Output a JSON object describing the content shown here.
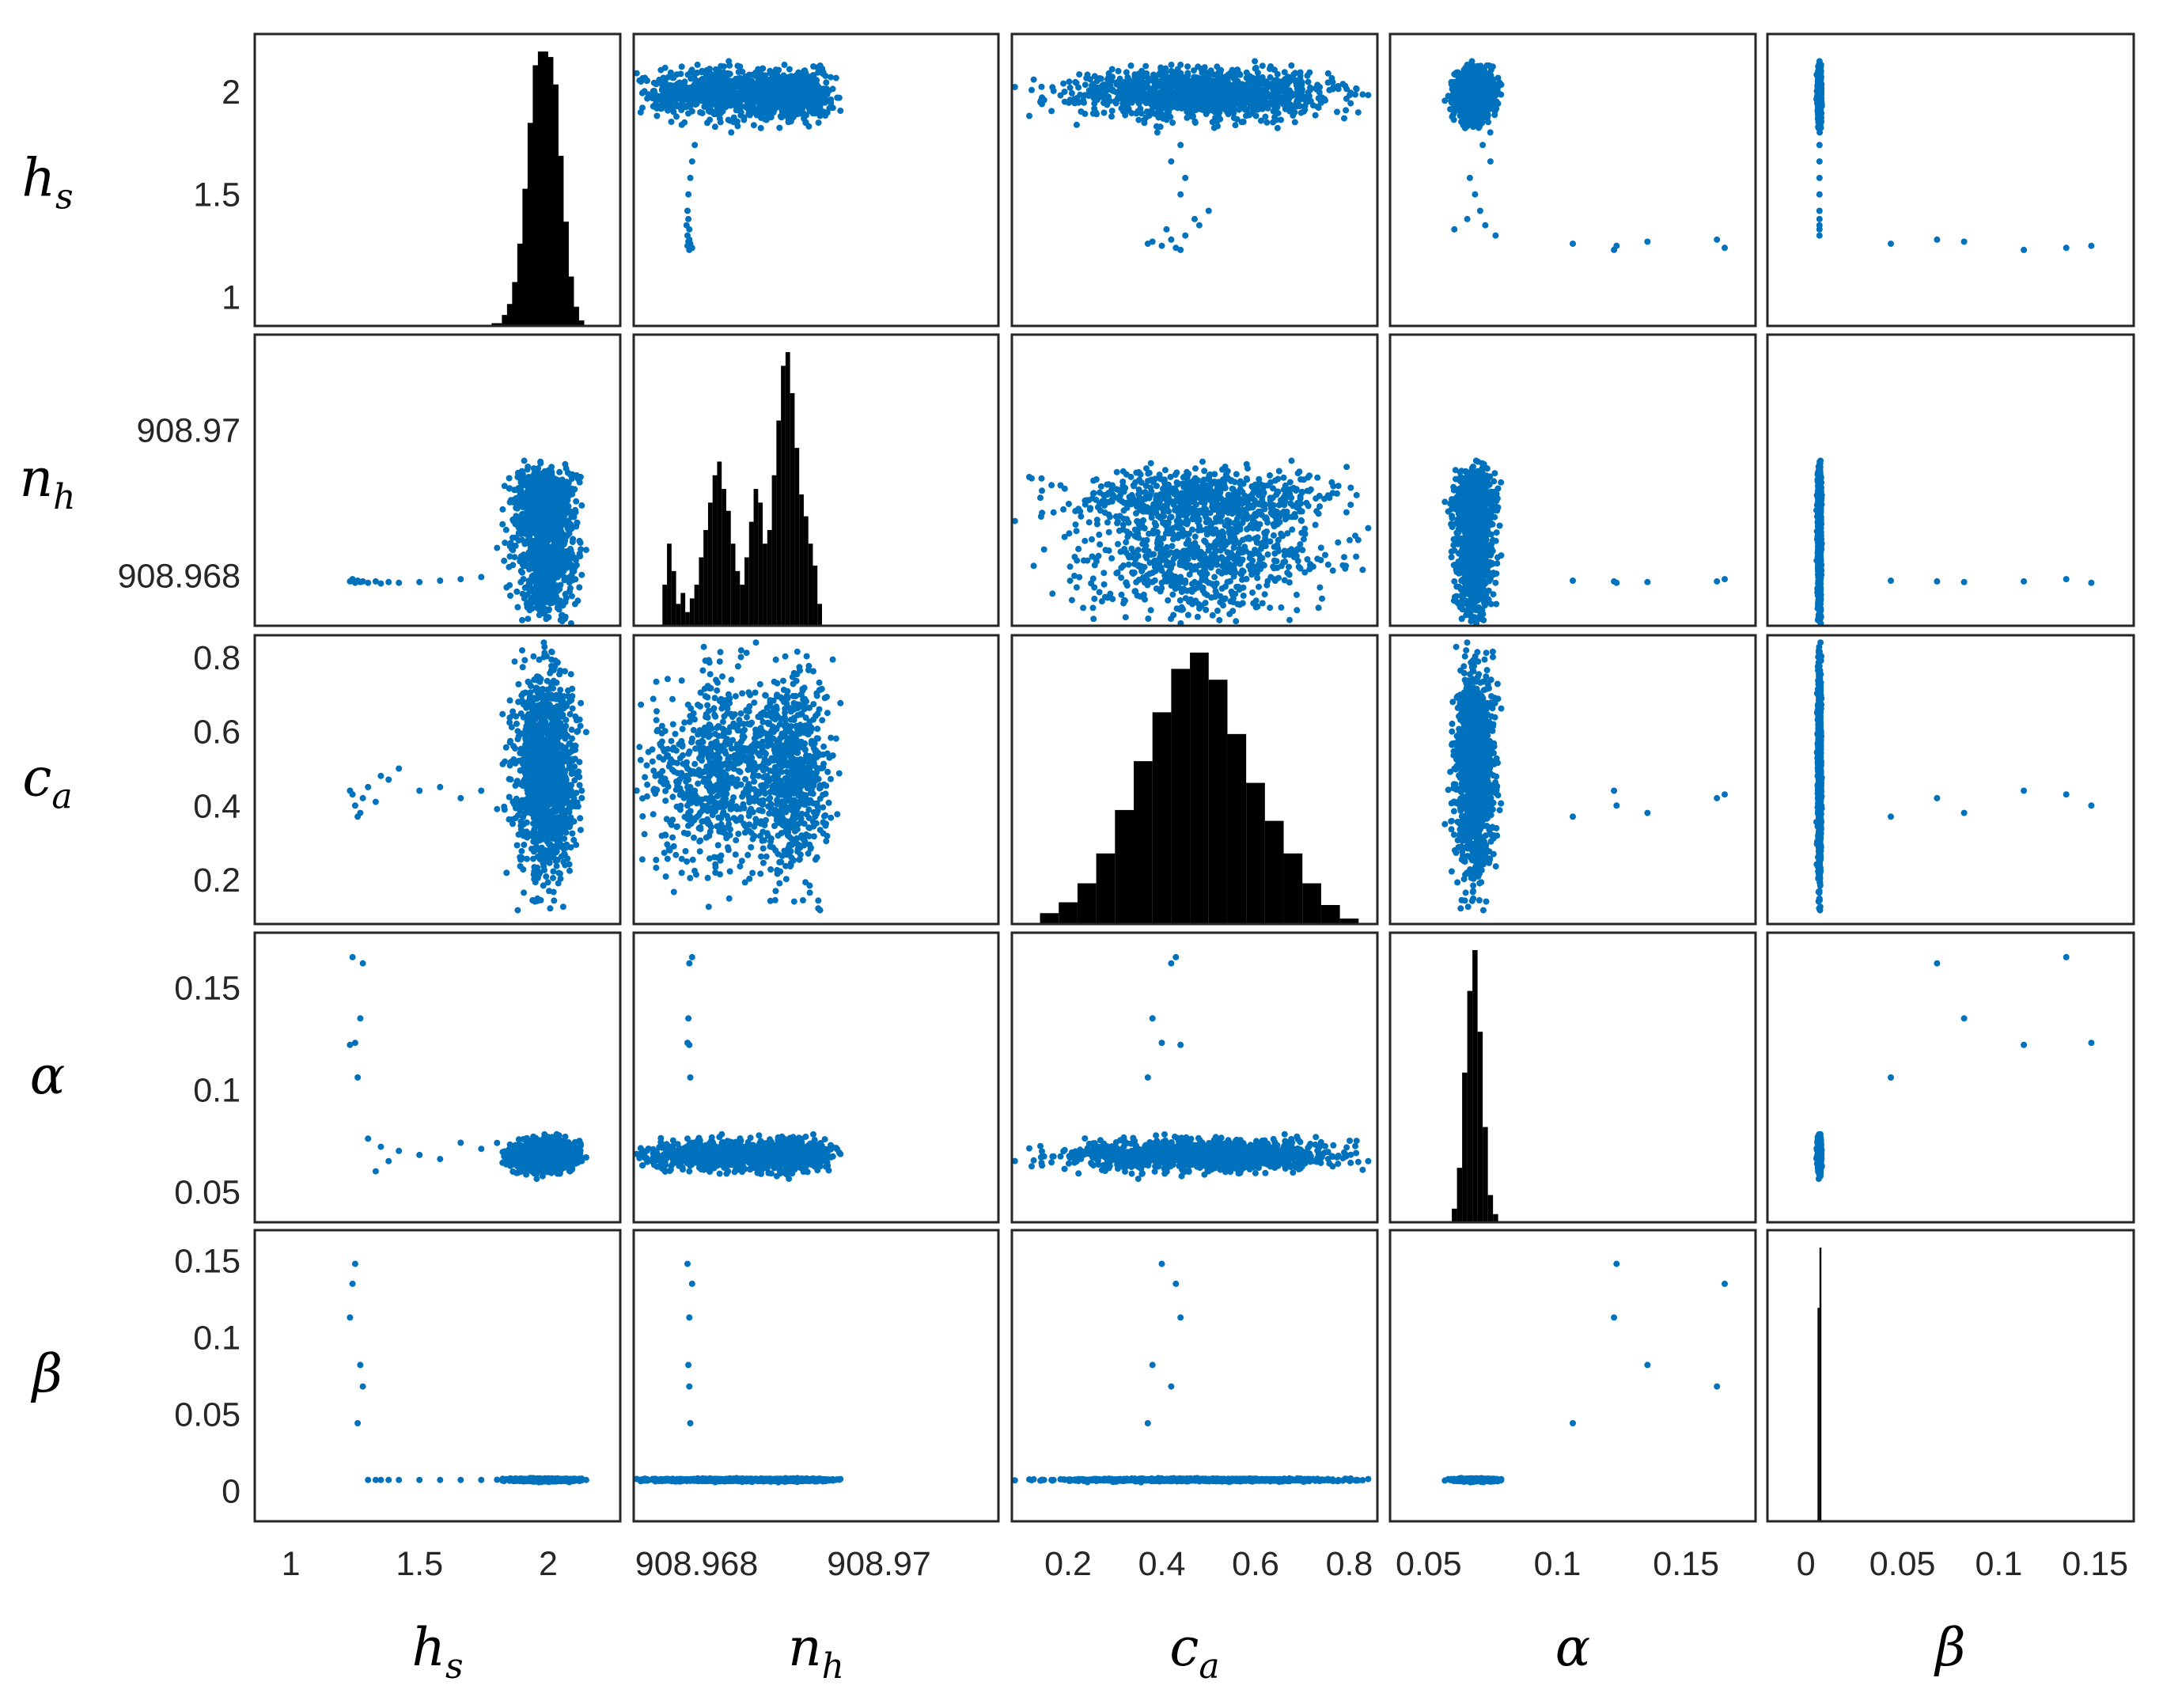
{
  "chart_data": {
    "type": "scatter-matrix",
    "variables": [
      {
        "key": "hs",
        "symbol": "h",
        "sub": "s",
        "ticks": [
          1,
          1.5,
          2
        ],
        "tick_labels": [
          "1",
          "1.5",
          "2"
        ],
        "range": [
          0.86,
          2.28
        ]
      },
      {
        "key": "nh",
        "symbol": "n",
        "sub": "h",
        "ticks": [
          908.968,
          908.97
        ],
        "tick_labels": [
          "908.968",
          "908.97"
        ],
        "range": [
          908.96731,
          908.97131
        ]
      },
      {
        "key": "ca",
        "symbol": "c",
        "sub": "a",
        "ticks": [
          0.2,
          0.4,
          0.6,
          0.8
        ],
        "tick_labels": [
          "0.2",
          "0.4",
          "0.6",
          "0.8"
        ],
        "range": [
          0.08,
          0.86
        ]
      },
      {
        "key": "alpha",
        "symbol": "α",
        "sub": "",
        "ticks": [
          0.05,
          0.1,
          0.15
        ],
        "tick_labels": [
          "0.05",
          "0.1",
          "0.15"
        ],
        "range": [
          0.035,
          0.177
        ]
      },
      {
        "key": "beta",
        "symbol": "β",
        "sub": "",
        "ticks": [
          0,
          0.05,
          0.1,
          0.15
        ],
        "tick_labels": [
          "0",
          "0.05",
          "0.1",
          "0.15"
        ],
        "range": [
          -0.02,
          0.17
        ]
      }
    ],
    "diagonal": "histogram",
    "off_diagonal": "scatter",
    "histograms": {
      "hs": {
        "bins": [
          [
            1.8,
            0.01
          ],
          [
            1.84,
            0.04
          ],
          [
            1.86,
            0.08
          ],
          [
            1.88,
            0.16
          ],
          [
            1.9,
            0.3
          ],
          [
            1.92,
            0.5
          ],
          [
            1.94,
            0.74
          ],
          [
            1.96,
            0.95
          ],
          [
            1.98,
            1.0
          ],
          [
            2.0,
            0.98
          ],
          [
            2.02,
            0.88
          ],
          [
            2.04,
            0.62
          ],
          [
            2.06,
            0.38
          ],
          [
            2.08,
            0.18
          ],
          [
            2.1,
            0.07
          ],
          [
            2.12,
            0.02
          ]
        ]
      },
      "nh": {
        "bins": [
          [
            908.96765,
            0.15
          ],
          [
            908.9677,
            0.3
          ],
          [
            908.96775,
            0.2
          ],
          [
            908.9678,
            0.08
          ],
          [
            908.96785,
            0.12
          ],
          [
            908.9679,
            0.05
          ],
          [
            908.96795,
            0.1
          ],
          [
            908.968,
            0.15
          ],
          [
            908.96805,
            0.25
          ],
          [
            908.9681,
            0.35
          ],
          [
            908.96815,
            0.45
          ],
          [
            908.9682,
            0.55
          ],
          [
            908.96825,
            0.6
          ],
          [
            908.9683,
            0.5
          ],
          [
            908.96835,
            0.42
          ],
          [
            908.9684,
            0.3
          ],
          [
            908.96845,
            0.2
          ],
          [
            908.9685,
            0.15
          ],
          [
            908.96855,
            0.25
          ],
          [
            908.9686,
            0.38
          ],
          [
            908.96865,
            0.5
          ],
          [
            908.9687,
            0.45
          ],
          [
            908.96875,
            0.3
          ],
          [
            908.9688,
            0.35
          ],
          [
            908.96885,
            0.55
          ],
          [
            908.9689,
            0.75
          ],
          [
            908.96895,
            0.95
          ],
          [
            908.969,
            1.0
          ],
          [
            908.96905,
            0.85
          ],
          [
            908.9691,
            0.65
          ],
          [
            908.96915,
            0.48
          ],
          [
            908.9692,
            0.4
          ],
          [
            908.96925,
            0.3
          ],
          [
            908.9693,
            0.22
          ],
          [
            908.96935,
            0.08
          ]
        ]
      },
      "ca": {
        "bins": [
          [
            0.16,
            0.04
          ],
          [
            0.2,
            0.08
          ],
          [
            0.24,
            0.15
          ],
          [
            0.28,
            0.26
          ],
          [
            0.32,
            0.42
          ],
          [
            0.36,
            0.6
          ],
          [
            0.4,
            0.78
          ],
          [
            0.44,
            0.94
          ],
          [
            0.48,
            1.0
          ],
          [
            0.52,
            0.9
          ],
          [
            0.56,
            0.7
          ],
          [
            0.6,
            0.52
          ],
          [
            0.64,
            0.38
          ],
          [
            0.68,
            0.26
          ],
          [
            0.72,
            0.15
          ],
          [
            0.76,
            0.07
          ],
          [
            0.8,
            0.02
          ]
        ]
      },
      "alpha": {
        "bins": [
          [
            0.06,
            0.05
          ],
          [
            0.062,
            0.2
          ],
          [
            0.064,
            0.55
          ],
          [
            0.066,
            0.85
          ],
          [
            0.068,
            1.0
          ],
          [
            0.07,
            0.7
          ],
          [
            0.072,
            0.35
          ],
          [
            0.074,
            0.1
          ],
          [
            0.076,
            0.03
          ]
        ]
      },
      "beta": {
        "bins": [
          [
            0.0065,
            0.78
          ],
          [
            0.0075,
            1.0
          ]
        ]
      }
    }
  }
}
